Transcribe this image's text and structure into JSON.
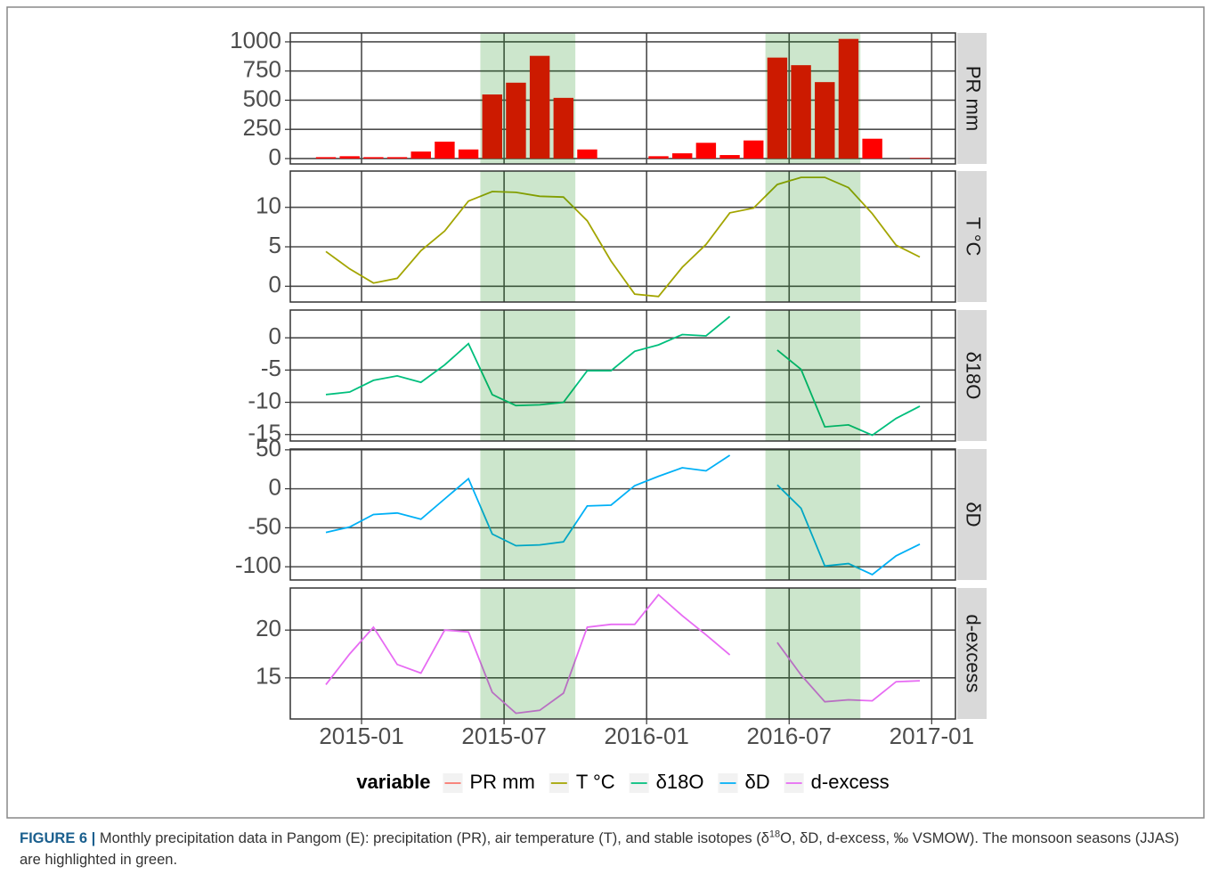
{
  "chart_data": {
    "type": "facet",
    "x": [
      "2014-11",
      "2014-12",
      "2015-01",
      "2015-02",
      "2015-03",
      "2015-04",
      "2015-05",
      "2015-06",
      "2015-07",
      "2015-08",
      "2015-09",
      "2015-10",
      "2015-11",
      "2015-12",
      "2016-01",
      "2016-02",
      "2016-03",
      "2016-04",
      "2016-05",
      "2016-06",
      "2016-07",
      "2016-08",
      "2016-09",
      "2016-10",
      "2016-11",
      "2016-12"
    ],
    "xlim": [
      "2014-10",
      "2017-02"
    ],
    "xticks": [
      "2015-01",
      "2015-07",
      "2016-01",
      "2016-07",
      "2017-01"
    ],
    "grid": true,
    "highlights": [
      [
        "2015-06",
        "2015-09"
      ],
      [
        "2016-06",
        "2016-09"
      ]
    ],
    "highlight_color": "#008000",
    "highlight_alpha": 0.2,
    "legend_title": "variable",
    "legend_position": "bottom",
    "series": [
      {
        "name": "PR mm",
        "type": "bar",
        "color": "#F8766D",
        "bar_color": "#ff0000",
        "values": [
          12,
          20,
          12,
          12,
          60,
          145,
          78,
          549,
          650,
          880,
          520,
          78,
          null,
          null,
          20,
          45,
          135,
          30,
          155,
          865,
          800,
          655,
          1025,
          170,
          null,
          5
        ],
        "ylim": [
          -46,
          1076
        ],
        "yticks": [
          0,
          250,
          500,
          750,
          1000
        ]
      },
      {
        "name": "T °C",
        "type": "line",
        "color": "#A3A500",
        "values": [
          4.4,
          2.2,
          0.4,
          1.0,
          4.5,
          7.0,
          10.8,
          12.0,
          11.9,
          11.4,
          11.3,
          8.3,
          3.2,
          -1.0,
          -1.3,
          2.4,
          5.3,
          9.3,
          9.9,
          12.9,
          13.8,
          13.8,
          12.5,
          9.2,
          5.2,
          3.7
        ],
        "ylim": [
          -2.0,
          14.6
        ],
        "yticks": [
          0,
          5,
          10
        ]
      },
      {
        "name": "δ18O",
        "type": "line",
        "color": "#00BF7D",
        "values": [
          -8.8,
          -8.4,
          -6.6,
          -5.9,
          -6.9,
          -4.2,
          -0.9,
          -8.8,
          -10.5,
          -10.4,
          -10.0,
          -5.1,
          -5.1,
          -2.1,
          -1.1,
          0.5,
          0.3,
          3.3,
          null,
          -1.9,
          -4.9,
          -13.8,
          -13.5,
          -15.1,
          -12.5,
          -10.6
        ],
        "ylim": [
          -16.0,
          4.3
        ],
        "yticks": [
          -15,
          -10,
          -5,
          0
        ]
      },
      {
        "name": "δD",
        "type": "line",
        "color": "#00B0F6",
        "values": [
          -56,
          -49,
          -33,
          -31,
          -39,
          -13,
          13,
          -58,
          -73,
          -72,
          -68,
          -22,
          -21,
          4,
          16,
          27,
          23,
          43,
          null,
          5,
          -25,
          -99,
          -96,
          -110,
          -86,
          -71
        ],
        "ylim": [
          -117,
          51
        ],
        "yticks": [
          -100,
          -50,
          0,
          50
        ]
      },
      {
        "name": "d-excess",
        "type": "line",
        "color": "#E76BF3",
        "values": [
          14.3,
          17.5,
          20.3,
          16.4,
          15.5,
          20.0,
          19.8,
          13.5,
          11.3,
          11.6,
          13.4,
          20.3,
          20.6,
          20.6,
          23.7,
          21.5,
          19.5,
          17.4,
          null,
          18.7,
          15.3,
          12.5,
          12.7,
          12.6,
          14.6,
          14.7
        ],
        "ylim": [
          10.7,
          24.4
        ],
        "yticks": [
          15,
          20
        ]
      }
    ]
  },
  "caption": {
    "label": "FIGURE 6 |",
    "parts": [
      "Monthly precipitation data in Pangom (E): precipitation (PR), air temperature (T), and stable isotopes (δ",
      "O, δD, d-excess, ‰ VSMOW). The monsoon seasons (JJAS) are highlighted in green."
    ],
    "sup": "18"
  }
}
